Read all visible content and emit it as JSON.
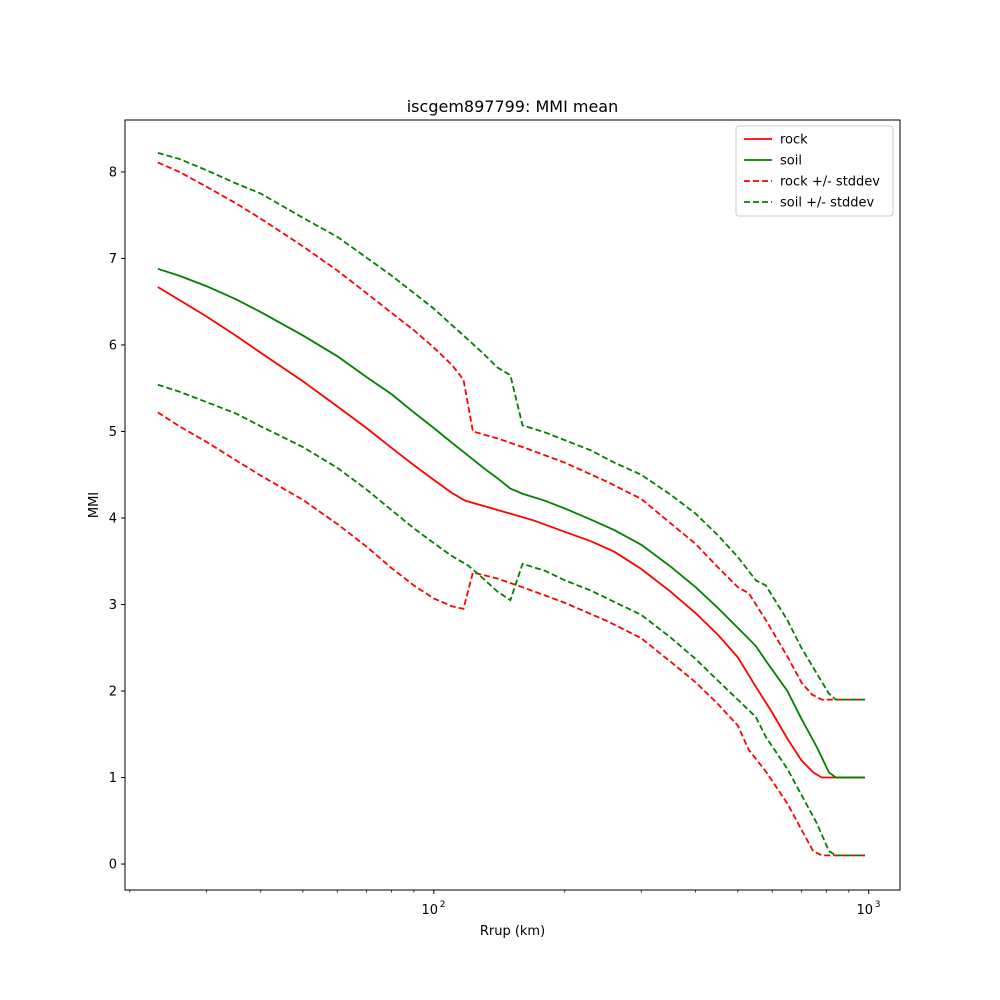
{
  "chart_data": {
    "type": "line",
    "title": "iscgem897799: MMI mean",
    "xlabel": "Rrup (km)",
    "ylabel": "MMI",
    "xscale": "log",
    "xlim": [
      19.5,
      1180
    ],
    "ylim": [
      -0.3,
      8.6
    ],
    "grid": false,
    "legend_position": "top-right",
    "x_major_ticks": [
      {
        "value": 100,
        "label": "10",
        "exp": "2"
      },
      {
        "value": 1000,
        "label": "10",
        "exp": "3"
      }
    ],
    "y_ticks": [
      0,
      1,
      2,
      3,
      4,
      5,
      6,
      7,
      8
    ],
    "series": [
      {
        "name": "rock",
        "color": "#ff0000",
        "style": "solid",
        "points": [
          [
            23.2,
            6.67
          ],
          [
            26,
            6.52
          ],
          [
            30,
            6.33
          ],
          [
            35,
            6.11
          ],
          [
            40,
            5.91
          ],
          [
            50,
            5.58
          ],
          [
            60,
            5.29
          ],
          [
            70,
            5.04
          ],
          [
            80,
            4.81
          ],
          [
            90,
            4.61
          ],
          [
            100,
            4.44
          ],
          [
            110,
            4.29
          ],
          [
            118,
            4.2
          ],
          [
            130,
            4.14
          ],
          [
            150,
            4.05
          ],
          [
            170,
            3.97
          ],
          [
            200,
            3.84
          ],
          [
            230,
            3.73
          ],
          [
            260,
            3.61
          ],
          [
            300,
            3.41
          ],
          [
            350,
            3.15
          ],
          [
            400,
            2.9
          ],
          [
            450,
            2.65
          ],
          [
            500,
            2.39
          ],
          [
            550,
            2.05
          ],
          [
            600,
            1.75
          ],
          [
            650,
            1.45
          ],
          [
            700,
            1.2
          ],
          [
            745,
            1.06
          ],
          [
            780,
            1.0
          ],
          [
            980,
            1.0
          ]
        ]
      },
      {
        "name": "soil",
        "color": "#008000",
        "style": "solid",
        "points": [
          [
            23.2,
            6.88
          ],
          [
            26,
            6.8
          ],
          [
            30,
            6.68
          ],
          [
            35,
            6.53
          ],
          [
            40,
            6.38
          ],
          [
            50,
            6.11
          ],
          [
            60,
            5.87
          ],
          [
            70,
            5.63
          ],
          [
            80,
            5.43
          ],
          [
            90,
            5.22
          ],
          [
            100,
            5.04
          ],
          [
            110,
            4.87
          ],
          [
            120,
            4.72
          ],
          [
            130,
            4.58
          ],
          [
            140,
            4.46
          ],
          [
            150,
            4.34
          ],
          [
            160,
            4.28
          ],
          [
            180,
            4.2
          ],
          [
            200,
            4.11
          ],
          [
            230,
            3.98
          ],
          [
            260,
            3.86
          ],
          [
            300,
            3.69
          ],
          [
            350,
            3.44
          ],
          [
            400,
            3.2
          ],
          [
            450,
            2.96
          ],
          [
            500,
            2.73
          ],
          [
            550,
            2.52
          ],
          [
            580,
            2.35
          ],
          [
            650,
            2.0
          ],
          [
            700,
            1.68
          ],
          [
            760,
            1.35
          ],
          [
            810,
            1.06
          ],
          [
            840,
            1.0
          ],
          [
            980,
            1.0
          ]
        ]
      },
      {
        "name": "rock +/- stddev",
        "color": "#ff0000",
        "style": "dashed",
        "points": [
          [
            23.2,
            8.11
          ],
          [
            26,
            8.0
          ],
          [
            30,
            7.83
          ],
          [
            35,
            7.64
          ],
          [
            40,
            7.46
          ],
          [
            50,
            7.14
          ],
          [
            60,
            6.86
          ],
          [
            70,
            6.6
          ],
          [
            80,
            6.37
          ],
          [
            90,
            6.17
          ],
          [
            100,
            5.97
          ],
          [
            110,
            5.77
          ],
          [
            117,
            5.6
          ],
          [
            123,
            5.0
          ],
          [
            140,
            4.92
          ],
          [
            160,
            4.82
          ],
          [
            200,
            4.64
          ],
          [
            250,
            4.42
          ],
          [
            300,
            4.22
          ],
          [
            350,
            3.94
          ],
          [
            400,
            3.7
          ],
          [
            450,
            3.43
          ],
          [
            500,
            3.2
          ],
          [
            530,
            3.13
          ],
          [
            580,
            2.82
          ],
          [
            650,
            2.4
          ],
          [
            700,
            2.1
          ],
          [
            740,
            1.96
          ],
          [
            780,
            1.9
          ],
          [
            980,
            1.9
          ]
        ]
      },
      {
        "name": "rock +/- stddev",
        "color": "#ff0000",
        "style": "dashed",
        "points": [
          [
            23.2,
            5.22
          ],
          [
            26,
            5.06
          ],
          [
            30,
            4.88
          ],
          [
            35,
            4.67
          ],
          [
            40,
            4.49
          ],
          [
            50,
            4.21
          ],
          [
            60,
            3.93
          ],
          [
            70,
            3.67
          ],
          [
            80,
            3.42
          ],
          [
            90,
            3.22
          ],
          [
            100,
            3.07
          ],
          [
            110,
            2.98
          ],
          [
            117,
            2.95
          ],
          [
            123,
            3.37
          ],
          [
            140,
            3.3
          ],
          [
            160,
            3.2
          ],
          [
            200,
            3.02
          ],
          [
            250,
            2.81
          ],
          [
            300,
            2.61
          ],
          [
            350,
            2.34
          ],
          [
            400,
            2.1
          ],
          [
            450,
            1.85
          ],
          [
            500,
            1.6
          ],
          [
            530,
            1.32
          ],
          [
            580,
            1.07
          ],
          [
            650,
            0.7
          ],
          [
            700,
            0.4
          ],
          [
            745,
            0.15
          ],
          [
            780,
            0.1
          ],
          [
            980,
            0.1
          ]
        ]
      },
      {
        "name": "soil +/- stddev",
        "color": "#008000",
        "style": "dashed",
        "points": [
          [
            23.2,
            8.22
          ],
          [
            26,
            8.15
          ],
          [
            30,
            8.02
          ],
          [
            35,
            7.87
          ],
          [
            40,
            7.75
          ],
          [
            50,
            7.47
          ],
          [
            60,
            7.25
          ],
          [
            70,
            7.01
          ],
          [
            80,
            6.8
          ],
          [
            90,
            6.6
          ],
          [
            100,
            6.42
          ],
          [
            110,
            6.23
          ],
          [
            120,
            6.06
          ],
          [
            130,
            5.9
          ],
          [
            140,
            5.74
          ],
          [
            150,
            5.65
          ],
          [
            160,
            5.07
          ],
          [
            180,
            4.99
          ],
          [
            200,
            4.9
          ],
          [
            230,
            4.78
          ],
          [
            260,
            4.64
          ],
          [
            300,
            4.5
          ],
          [
            350,
            4.27
          ],
          [
            400,
            4.05
          ],
          [
            450,
            3.8
          ],
          [
            500,
            3.55
          ],
          [
            550,
            3.28
          ],
          [
            580,
            3.22
          ],
          [
            650,
            2.82
          ],
          [
            700,
            2.5
          ],
          [
            760,
            2.2
          ],
          [
            810,
            1.97
          ],
          [
            840,
            1.9
          ],
          [
            980,
            1.9
          ]
        ]
      },
      {
        "name": "soil +/- stddev",
        "color": "#008000",
        "style": "dashed",
        "points": [
          [
            23.2,
            5.54
          ],
          [
            26,
            5.46
          ],
          [
            30,
            5.34
          ],
          [
            35,
            5.21
          ],
          [
            40,
            5.06
          ],
          [
            50,
            4.82
          ],
          [
            60,
            4.58
          ],
          [
            70,
            4.33
          ],
          [
            80,
            4.09
          ],
          [
            90,
            3.88
          ],
          [
            100,
            3.71
          ],
          [
            110,
            3.56
          ],
          [
            120,
            3.45
          ],
          [
            130,
            3.3
          ],
          [
            140,
            3.15
          ],
          [
            150,
            3.05
          ],
          [
            160,
            3.47
          ],
          [
            180,
            3.39
          ],
          [
            200,
            3.28
          ],
          [
            230,
            3.16
          ],
          [
            260,
            3.03
          ],
          [
            300,
            2.88
          ],
          [
            350,
            2.62
          ],
          [
            400,
            2.37
          ],
          [
            450,
            2.12
          ],
          [
            500,
            1.9
          ],
          [
            550,
            1.7
          ],
          [
            580,
            1.47
          ],
          [
            650,
            1.1
          ],
          [
            700,
            0.8
          ],
          [
            760,
            0.47
          ],
          [
            810,
            0.15
          ],
          [
            840,
            0.1
          ],
          [
            980,
            0.1
          ]
        ]
      }
    ],
    "legend": [
      {
        "label": "rock",
        "color": "#ff0000",
        "style": "solid"
      },
      {
        "label": "soil",
        "color": "#008000",
        "style": "solid"
      },
      {
        "label": "rock +/- stddev",
        "color": "#ff0000",
        "style": "dashed"
      },
      {
        "label": "soil +/- stddev",
        "color": "#008000",
        "style": "dashed"
      }
    ]
  }
}
